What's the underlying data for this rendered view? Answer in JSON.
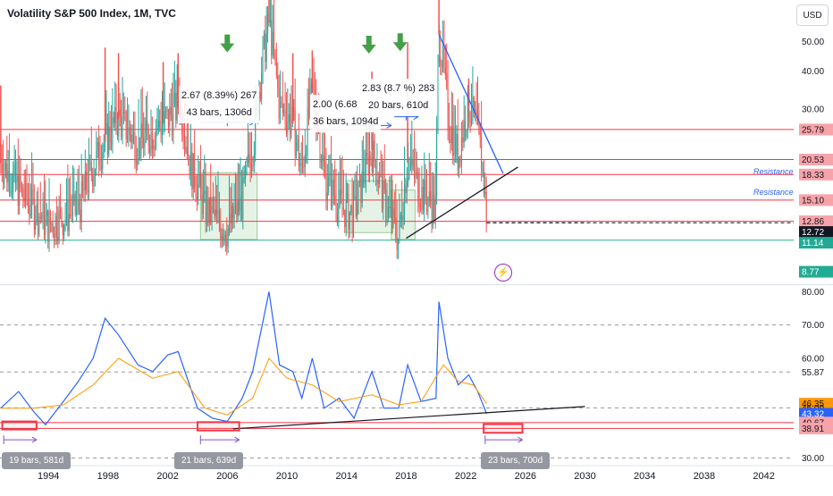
{
  "title": "Volatility S&P 500 Index, 1M, TVC",
  "currency": "USD",
  "colors": {
    "up": "#26a69a",
    "down": "#ef5350",
    "resistance": "#f23645",
    "support": "#22ab94",
    "trendline": "#2962ff",
    "rsi": "#2962ff",
    "rsi_ma": "#ff9800",
    "text": "#131722"
  },
  "icons": {
    "alert": "lightning-icon",
    "arrows": "arrow-down-icon"
  },
  "annotations": [
    {
      "line1": "2.67 (8.39%) 267",
      "line2": "43 bars, 1306d"
    },
    {
      "line1": "2.00 (6.68",
      "line2": "36 bars, 1094d"
    },
    {
      "line1": "2.83 (8.7  %) 283",
      "line2": "20 bars, 610d"
    }
  ],
  "resistance_labels": [
    "Resistance",
    "Resistance"
  ],
  "rsi_pills": [
    "19 bars, 581d",
    "21 bars, 639d",
    "23 bars, 700d"
  ],
  "chart_data": [
    {
      "type": "candlestick",
      "title": "Volatility S&P 500 Index, 1M, TVC",
      "y_scale": "log",
      "ylim": [
        8.2,
        67
      ],
      "y_ticks": [
        30.0,
        40.0,
        50.0,
        60.0
      ],
      "x_ticks": [
        "1994",
        "1998",
        "2002",
        "2006",
        "2010",
        "2014",
        "2018",
        "2022",
        "2026",
        "2030",
        "2034",
        "2038",
        "2042"
      ],
      "xlim": [
        1990.75,
        2044.0
      ],
      "price_labels": [
        {
          "value": "25.79",
          "style": "resistance"
        },
        {
          "value": "20.53",
          "style": "resistance"
        },
        {
          "value": "18.33",
          "style": "resistance"
        },
        {
          "value": "15.10",
          "style": "resistance"
        },
        {
          "value": "12.86",
          "style": "resistance"
        },
        {
          "value": "12.72",
          "style": "current"
        },
        {
          "value": "11.14",
          "style": "support"
        },
        {
          "value": "8.77",
          "style": "support"
        }
      ],
      "levels": [
        {
          "value": 25.79,
          "style": "resistance"
        },
        {
          "value": 20.53,
          "style": "resistance"
        },
        {
          "value": 18.33,
          "style": "resistance"
        },
        {
          "value": 15.1,
          "style": "resistance"
        },
        {
          "value": 12.86,
          "style": "resistance"
        },
        {
          "value": 11.14,
          "style": "support"
        },
        {
          "value": 12.72,
          "style": "current"
        }
      ],
      "trend_lines": [
        {
          "x": [
            2018.0,
            2025.5
          ],
          "y": [
            11.3,
            19.4
          ],
          "style": "black"
        },
        {
          "x": [
            2020.2,
            2024.5
          ],
          "y": [
            53.0,
            18.5
          ],
          "style": "blue"
        },
        {
          "x": [
            2023.4,
            2030.0
          ],
          "y": [
            12.72,
            12.72
          ],
          "style": "dashed"
        }
      ],
      "zones": [
        {
          "x": [
            2004.2,
            2008.0
          ],
          "y": [
            11.2,
            18.6
          ]
        },
        {
          "x": [
            2014.0,
            2017.1
          ],
          "y": [
            11.8,
            17.5
          ]
        },
        {
          "x": [
            2017.0,
            2018.6
          ],
          "y": [
            11.2,
            16.3
          ]
        }
      ],
      "measure_arrows": [
        {
          "x": [
            2004.2,
            2007.8
          ],
          "y": 27.2
        },
        {
          "x": [
            2014.0,
            2017.0
          ],
          "y": 26.6
        },
        {
          "x": [
            2017.2,
            2018.8
          ],
          "y": 28.4
        }
      ],
      "down_markers": [
        {
          "x": 2006.0,
          "y": 53.0
        },
        {
          "x": 2015.5,
          "y": 52.5
        },
        {
          "x": 2017.6,
          "y": 53.5
        }
      ],
      "spikes": [
        {
          "x": 1990.8,
          "y": 36.0
        },
        {
          "x": 1997.8,
          "y": 48.0
        },
        {
          "x": 1998.7,
          "y": 46.0
        },
        {
          "x": 2001.7,
          "y": 43.0
        },
        {
          "x": 2002.7,
          "y": 46.0
        },
        {
          "x": 2008.8,
          "y": 80.0
        },
        {
          "x": 2010.4,
          "y": 46.0
        },
        {
          "x": 2011.7,
          "y": 47.0
        },
        {
          "x": 2015.7,
          "y": 40.0
        },
        {
          "x": 2018.1,
          "y": 50.0
        },
        {
          "x": 2020.2,
          "y": 82.0
        },
        {
          "x": 2022.2,
          "y": 38.0
        }
      ]
    },
    {
      "type": "line",
      "ylim": [
        28.0,
        82.0
      ],
      "y_ticks": [
        30.0,
        40.67,
        50.0,
        60.0,
        70.0,
        80.0
      ],
      "y_labels": [
        {
          "value": "80.00",
          "style": "plain"
        },
        {
          "value": "70.00",
          "style": "plain"
        },
        {
          "value": "60.00",
          "style": "plain"
        },
        {
          "value": "55.87",
          "style": "plain"
        },
        {
          "value": "46.35",
          "style": "orange"
        },
        {
          "value": "45.09",
          "style": "plain"
        },
        {
          "value": "43.32",
          "style": "blue"
        },
        {
          "value": "40.67",
          "style": "resistance"
        },
        {
          "value": "38.91",
          "style": "resistance"
        },
        {
          "value": "30.00",
          "style": "plain"
        }
      ],
      "levels": [
        {
          "value": 70.0,
          "style": "dashed"
        },
        {
          "value": 55.87,
          "style": "dashed"
        },
        {
          "value": 45.09,
          "style": "dashed"
        },
        {
          "value": 30.0,
          "style": "dashed"
        },
        {
          "value": 40.67,
          "style": "resistance"
        },
        {
          "value": 38.91,
          "style": "resistance"
        }
      ],
      "series": [
        {
          "x": [
            1990.8,
            1992.0,
            1993.0,
            1993.8,
            1995.0,
            1996.0,
            1997.0,
            1997.8,
            1998.7,
            2000.0,
            2001.0,
            2002.0,
            2002.7,
            2004.0,
            2005.0,
            2006.0,
            2007.0,
            2007.7,
            2008.8,
            2009.5,
            2010.4,
            2011.0,
            2011.7,
            2012.5,
            2013.5,
            2014.5,
            2015.7,
            2016.5,
            2017.5,
            2018.1,
            2019.0,
            2020.0,
            2020.2,
            2020.8,
            2021.5,
            2022.2,
            2022.8,
            2023.4
          ],
          "y": [
            45,
            50,
            44,
            40,
            47,
            53,
            60,
            72,
            67,
            58,
            56,
            61,
            62,
            45,
            42,
            41,
            48,
            56,
            80,
            58,
            56,
            48,
            60,
            45,
            48,
            42,
            56,
            45,
            45,
            58,
            47,
            48,
            77,
            60,
            52,
            55,
            50,
            43.32
          ],
          "style": "rsi"
        },
        {
          "x": [
            1990.8,
            1993.0,
            1995.0,
            1997.0,
            1998.7,
            2001.0,
            2002.7,
            2004.5,
            2006.0,
            2007.7,
            2008.8,
            2010.0,
            2011.7,
            2013.5,
            2015.7,
            2017.5,
            2019.0,
            2020.5,
            2021.5,
            2022.5,
            2023.4
          ],
          "y": [
            45,
            45,
            46,
            52,
            60,
            54,
            56,
            45,
            43,
            48,
            60,
            54,
            52,
            47,
            49,
            46,
            47,
            58,
            53,
            52,
            46.35
          ],
          "style": "rsi_ma"
        }
      ],
      "trend_lines": [
        {
          "x": [
            2006.4,
            2030.0
          ],
          "y": [
            38.8,
            45.5
          ],
          "style": "black"
        }
      ],
      "boxes": [
        {
          "x": [
            1990.9,
            1993.2
          ],
          "y": [
            38.6,
            41.0
          ]
        },
        {
          "x": [
            2004.0,
            2006.8
          ],
          "y": [
            38.3,
            40.8
          ]
        },
        {
          "x": [
            2023.2,
            2025.8
          ],
          "y": [
            37.6,
            40.2
          ]
        }
      ],
      "range_arrows": [
        {
          "x": [
            1991.0,
            1993.2
          ],
          "y": 35.5
        },
        {
          "x": [
            2004.2,
            2006.8
          ],
          "y": 35.5
        },
        {
          "x": [
            2023.3,
            2025.8
          ],
          "y": 35.5
        }
      ]
    }
  ]
}
